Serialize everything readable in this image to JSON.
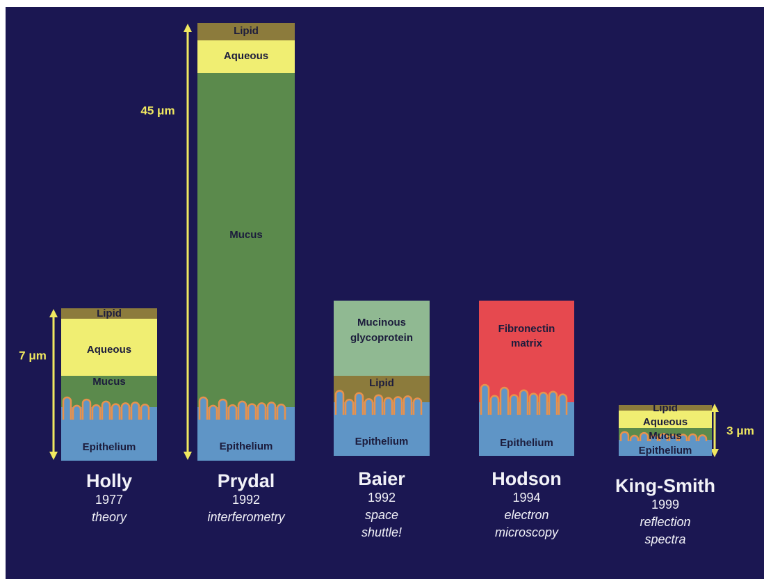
{
  "models": [
    {
      "name": "Holly",
      "year": "1977",
      "method": [
        "theory"
      ],
      "thickness": "7 μm",
      "layers": [
        [
          "Lipid"
        ],
        [
          "Aqueous"
        ],
        [
          "Mucus"
        ],
        [
          "Epithelium"
        ]
      ]
    },
    {
      "name": "Prydal",
      "year": "1992",
      "method": [
        "interferometry"
      ],
      "thickness": "45 μm",
      "layers": [
        [
          "Lipid"
        ],
        [
          "Aqueous"
        ],
        [
          "Mucus"
        ],
        [
          "Epithelium"
        ]
      ]
    },
    {
      "name": "Baier",
      "year": "1992",
      "method": [
        "space",
        "shuttle!"
      ],
      "layers": [
        [
          "Mucinous",
          "glycoprotein"
        ],
        [
          "Lipid"
        ],
        [
          "Epithelium"
        ]
      ]
    },
    {
      "name": "Hodson",
      "year": "1994",
      "method": [
        "electron",
        "microscopy"
      ],
      "layers": [
        [
          "Fibronectin",
          "matrix"
        ],
        [
          "Epithelium"
        ]
      ]
    },
    {
      "name": "King-Smith",
      "year": "1999",
      "method": [
        "reflection",
        "spectra"
      ],
      "thickness": "3 μm",
      "layers": [
        [
          "Lipid"
        ],
        [
          "Aqueous"
        ],
        [
          "Mucus"
        ],
        [
          "Epithelium"
        ]
      ]
    }
  ]
}
